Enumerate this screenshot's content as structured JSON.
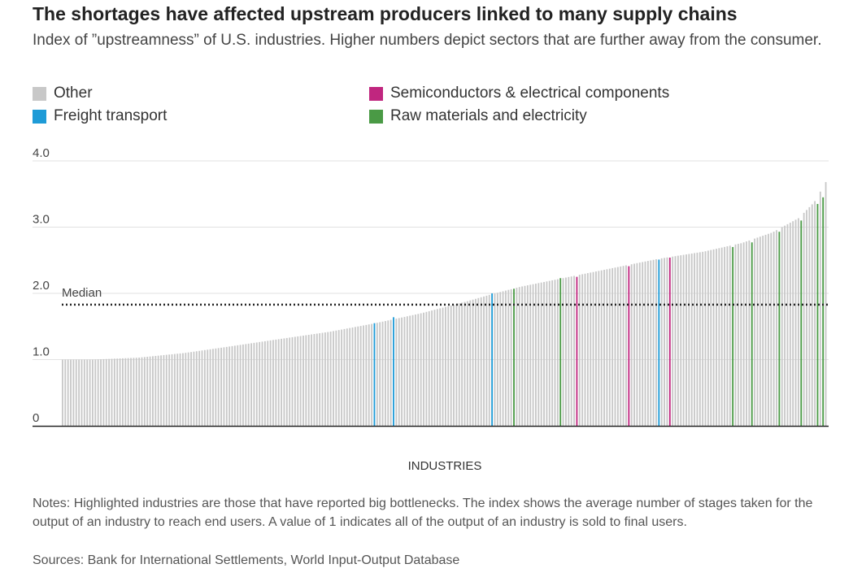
{
  "title": "The shortages have affected upstream producers linked to many supply chains",
  "subtitle": "Index of ”upstreamness” of U.S. industries. Higher numbers depict sectors that are further away from the consumer.",
  "legend": [
    {
      "label": "Other",
      "color": "#c8c8c8"
    },
    {
      "label": "Freight transport",
      "color": "#1e9bd7"
    },
    {
      "label": "Semiconductors & electrical components",
      "color": "#c0267f"
    },
    {
      "label": "Raw materials and electricity",
      "color": "#4a9a45"
    }
  ],
  "chart_data": {
    "type": "bar",
    "xlabel": "INDUSTRIES",
    "ylabel": "",
    "ylim": [
      0,
      4.0
    ],
    "yticks": [
      {
        "value": 0,
        "label": "0"
      },
      {
        "value": 1.0,
        "label": "1.0"
      },
      {
        "value": 2.0,
        "label": "2.0"
      },
      {
        "value": 3.0,
        "label": "3.0"
      },
      {
        "value": 4.0,
        "label": "4.0"
      }
    ],
    "grid": true,
    "bar_count": 280,
    "value_curve": [
      [
        0,
        1.0
      ],
      [
        0.04,
        1.0
      ],
      [
        0.1,
        1.03
      ],
      [
        0.16,
        1.1
      ],
      [
        0.22,
        1.2
      ],
      [
        0.29,
        1.32
      ],
      [
        0.35,
        1.42
      ],
      [
        0.41,
        1.55
      ],
      [
        0.47,
        1.7
      ],
      [
        0.53,
        1.88
      ],
      [
        0.56,
        1.98
      ],
      [
        0.6,
        2.1
      ],
      [
        0.66,
        2.24
      ],
      [
        0.72,
        2.38
      ],
      [
        0.78,
        2.52
      ],
      [
        0.84,
        2.63
      ],
      [
        0.89,
        2.76
      ],
      [
        0.93,
        2.92
      ],
      [
        0.965,
        3.14
      ],
      [
        0.985,
        3.38
      ],
      [
        1.0,
        3.68
      ]
    ],
    "highlights": [
      {
        "index": 114,
        "category": "Freight transport",
        "value": 1.55
      },
      {
        "index": 121,
        "category": "Freight transport",
        "value": 1.64
      },
      {
        "index": 157,
        "category": "Freight transport",
        "value": 2.0
      },
      {
        "index": 165,
        "category": "Raw materials and electricity",
        "value": 2.07
      },
      {
        "index": 182,
        "category": "Raw materials and electricity",
        "value": 2.23
      },
      {
        "index": 188,
        "category": "Semiconductors & electrical components",
        "value": 2.25
      },
      {
        "index": 207,
        "category": "Semiconductors & electrical components",
        "value": 2.41
      },
      {
        "index": 218,
        "category": "Freight transport",
        "value": 2.51
      },
      {
        "index": 222,
        "category": "Semiconductors & electrical components",
        "value": 2.54
      },
      {
        "index": 245,
        "category": "Raw materials and electricity",
        "value": 2.7
      },
      {
        "index": 252,
        "category": "Raw materials and electricity",
        "value": 2.77
      },
      {
        "index": 262,
        "category": "Raw materials and electricity",
        "value": 2.93
      },
      {
        "index": 270,
        "category": "Raw materials and electricity",
        "value": 3.1
      },
      {
        "index": 276,
        "category": "Raw materials and electricity",
        "value": 3.35
      },
      {
        "index": 278,
        "category": "Raw materials and electricity",
        "value": 3.45
      }
    ],
    "median": {
      "label": "Median",
      "value": 1.83
    }
  },
  "notes": "Notes: Highlighted industries are those that have reported big bottlenecks. The index shows the average number of stages taken for the output of an industry to reach end users. A value of 1 indicates all of the output of an industry is sold to final users.",
  "sources": "Sources: Bank for International Settlements, World Input-Output Database"
}
